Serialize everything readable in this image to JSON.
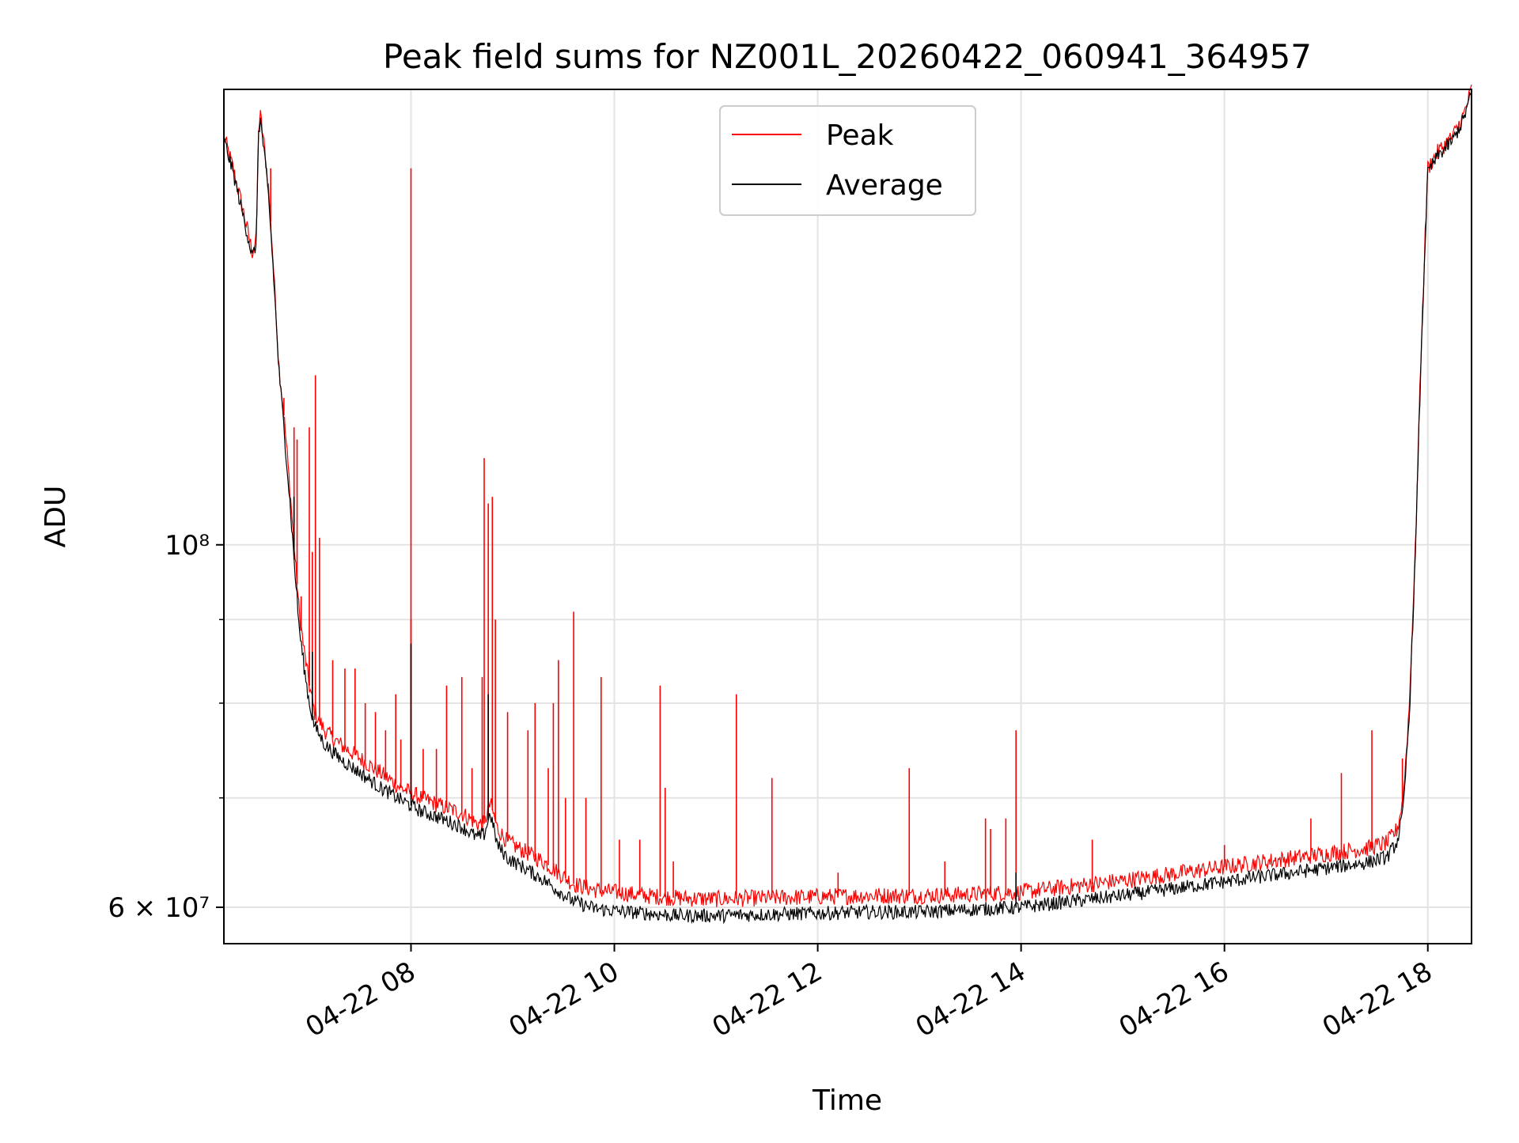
{
  "chart_data": {
    "type": "line",
    "title": "Peak field sums for NZ001L_20260422_060941_364957",
    "xlabel": "Time",
    "ylabel": "ADU",
    "x_unit": "hours since 2026-04-22 00:00",
    "xlim": [
      6.16,
      18.43
    ],
    "ylim": [
      57000000,
      190000000
    ],
    "yscale": "log",
    "grid": true,
    "legend_position": "top-center",
    "x_ticks": [
      {
        "value": 8,
        "label": "04-22 08"
      },
      {
        "value": 10,
        "label": "04-22 10"
      },
      {
        "value": 12,
        "label": "04-22 12"
      },
      {
        "value": 14,
        "label": "04-22 14"
      },
      {
        "value": 16,
        "label": "04-22 16"
      },
      {
        "value": 18,
        "label": "04-22 18"
      }
    ],
    "y_major_ticks": [
      {
        "value": 60000000,
        "label": "6 × 10⁷"
      },
      {
        "value": 100000000,
        "label": "10⁸"
      }
    ],
    "y_minor_ticks": [
      70000000,
      80000000,
      90000000
    ],
    "series": [
      {
        "name": "Peak",
        "color": "#ff0000",
        "baseline": [
          [
            6.16,
            178000000
          ],
          [
            6.25,
            170000000
          ],
          [
            6.35,
            160000000
          ],
          [
            6.44,
            151000000
          ],
          [
            6.48,
            154000000
          ],
          [
            6.5,
            180000000
          ],
          [
            6.52,
            183000000
          ],
          [
            6.55,
            177000000
          ],
          [
            6.6,
            165000000
          ],
          [
            6.7,
            129000000
          ],
          [
            6.75,
            120000000
          ],
          [
            6.8,
            110000000
          ],
          [
            6.85,
            100000000
          ],
          [
            6.9,
            91000000
          ],
          [
            6.95,
            86000000
          ],
          [
            7.0,
            82000000
          ],
          [
            7.05,
            79000000
          ],
          [
            7.15,
            77000000
          ],
          [
            7.3,
            75500000
          ],
          [
            7.5,
            74000000
          ],
          [
            7.7,
            72500000
          ],
          [
            7.9,
            71000000
          ],
          [
            8.1,
            70000000
          ],
          [
            8.3,
            69200000
          ],
          [
            8.5,
            68500000
          ],
          [
            8.65,
            67500000
          ],
          [
            8.72,
            67500000
          ],
          [
            8.78,
            69500000
          ],
          [
            8.85,
            67000000
          ],
          [
            8.95,
            65800000
          ],
          [
            9.1,
            65000000
          ],
          [
            9.3,
            64000000
          ],
          [
            9.45,
            63000000
          ],
          [
            9.6,
            62000000
          ],
          [
            9.8,
            61500000
          ],
          [
            10.0,
            61300000
          ],
          [
            10.3,
            61000000
          ],
          [
            10.6,
            60800000
          ],
          [
            11.0,
            60700000
          ],
          [
            11.5,
            60800000
          ],
          [
            12.0,
            60900000
          ],
          [
            12.5,
            61000000
          ],
          [
            13.0,
            61000000
          ],
          [
            13.5,
            61100000
          ],
          [
            14.0,
            61300000
          ],
          [
            14.5,
            61800000
          ],
          [
            15.0,
            62300000
          ],
          [
            15.5,
            62900000
          ],
          [
            16.0,
            63500000
          ],
          [
            16.5,
            64100000
          ],
          [
            17.0,
            64700000
          ],
          [
            17.4,
            65200000
          ],
          [
            17.6,
            65700000
          ],
          [
            17.7,
            67000000
          ],
          [
            17.76,
            70000000
          ],
          [
            17.82,
            80000000
          ],
          [
            17.88,
            100000000
          ],
          [
            17.95,
            140000000
          ],
          [
            18.0,
            170000000
          ],
          [
            18.1,
            174000000
          ],
          [
            18.25,
            178000000
          ],
          [
            18.35,
            183000000
          ],
          [
            18.43,
            190000000
          ]
        ],
        "spikes": [
          [
            6.62,
            170000000
          ],
          [
            6.75,
            123000000
          ],
          [
            6.85,
            118000000
          ],
          [
            6.88,
            116000000
          ],
          [
            6.92,
            93000000
          ],
          [
            7.0,
            118000000
          ],
          [
            7.0,
            86000000
          ],
          [
            7.03,
            99000000
          ],
          [
            7.06,
            127000000
          ],
          [
            7.1,
            101000000
          ],
          [
            7.23,
            85000000
          ],
          [
            7.35,
            84000000
          ],
          [
            7.45,
            84000000
          ],
          [
            7.55,
            80000000
          ],
          [
            7.65,
            79000000
          ],
          [
            7.75,
            77000000
          ],
          [
            7.85,
            81000000
          ],
          [
            7.9,
            76000000
          ],
          [
            8.0,
            170000000
          ],
          [
            8.0,
            90000000
          ],
          [
            8.12,
            75000000
          ],
          [
            8.25,
            75000000
          ],
          [
            8.35,
            82000000
          ],
          [
            8.5,
            83000000
          ],
          [
            8.6,
            73000000
          ],
          [
            8.7,
            83000000
          ],
          [
            8.72,
            113000000
          ],
          [
            8.76,
            106000000
          ],
          [
            8.8,
            107000000
          ],
          [
            8.83,
            90000000
          ],
          [
            8.95,
            79000000
          ],
          [
            9.15,
            77000000
          ],
          [
            9.22,
            80000000
          ],
          [
            9.35,
            73000000
          ],
          [
            9.4,
            80000000
          ],
          [
            9.45,
            85000000
          ],
          [
            9.52,
            70000000
          ],
          [
            9.6,
            91000000
          ],
          [
            9.72,
            70000000
          ],
          [
            9.87,
            83000000
          ],
          [
            10.05,
            66000000
          ],
          [
            10.25,
            66000000
          ],
          [
            10.45,
            82000000
          ],
          [
            10.5,
            71000000
          ],
          [
            10.58,
            64000000
          ],
          [
            11.2,
            81000000
          ],
          [
            11.55,
            72000000
          ],
          [
            12.2,
            63000000
          ],
          [
            12.9,
            73000000
          ],
          [
            13.25,
            64000000
          ],
          [
            13.65,
            68000000
          ],
          [
            13.7,
            67000000
          ],
          [
            13.85,
            68000000
          ],
          [
            13.95,
            77000000
          ],
          [
            14.7,
            66000000
          ],
          [
            16.0,
            65500000
          ],
          [
            16.85,
            68000000
          ],
          [
            17.15,
            72500000
          ],
          [
            17.45,
            77000000
          ],
          [
            17.75,
            74000000
          ]
        ]
      },
      {
        "name": "Average",
        "color": "#000000",
        "baseline": [
          [
            6.16,
            177000000
          ],
          [
            6.25,
            169000000
          ],
          [
            6.35,
            159000000
          ],
          [
            6.44,
            150000000
          ],
          [
            6.48,
            153000000
          ],
          [
            6.5,
            179000000
          ],
          [
            6.52,
            182000000
          ],
          [
            6.55,
            175000000
          ],
          [
            6.6,
            163000000
          ],
          [
            6.7,
            128000000
          ],
          [
            6.75,
            118000000
          ],
          [
            6.8,
            108000000
          ],
          [
            6.85,
            98000000
          ],
          [
            6.9,
            89000000
          ],
          [
            6.95,
            84000000
          ],
          [
            7.0,
            80000000
          ],
          [
            7.05,
            77500000
          ],
          [
            7.15,
            75500000
          ],
          [
            7.3,
            74000000
          ],
          [
            7.5,
            72500000
          ],
          [
            7.7,
            71000000
          ],
          [
            7.9,
            69800000
          ],
          [
            8.1,
            68700000
          ],
          [
            8.3,
            68000000
          ],
          [
            8.5,
            67200000
          ],
          [
            8.65,
            66200000
          ],
          [
            8.72,
            66500000
          ],
          [
            8.78,
            68500000
          ],
          [
            8.85,
            65500000
          ],
          [
            8.95,
            64300000
          ],
          [
            9.1,
            63500000
          ],
          [
            9.3,
            62400000
          ],
          [
            9.45,
            61400000
          ],
          [
            9.6,
            60500000
          ],
          [
            9.8,
            59900000
          ],
          [
            10.0,
            59700000
          ],
          [
            10.3,
            59500000
          ],
          [
            10.6,
            59300000
          ],
          [
            11.0,
            59300000
          ],
          [
            11.5,
            59400000
          ],
          [
            12.0,
            59500000
          ],
          [
            12.5,
            59600000
          ],
          [
            13.0,
            59600000
          ],
          [
            13.5,
            59800000
          ],
          [
            14.0,
            60000000
          ],
          [
            14.5,
            60500000
          ],
          [
            15.0,
            61000000
          ],
          [
            15.5,
            61600000
          ],
          [
            16.0,
            62200000
          ],
          [
            16.5,
            62800000
          ],
          [
            17.0,
            63400000
          ],
          [
            17.4,
            63900000
          ],
          [
            17.6,
            64400000
          ],
          [
            17.7,
            65800000
          ],
          [
            17.76,
            68800000
          ],
          [
            17.82,
            79000000
          ],
          [
            17.88,
            99000000
          ],
          [
            17.95,
            139000000
          ],
          [
            18.0,
            169000000
          ],
          [
            18.1,
            173000000
          ],
          [
            18.25,
            177000000
          ],
          [
            18.35,
            182000000
          ],
          [
            18.43,
            189000000
          ]
        ],
        "spikes": [
          [
            6.85,
            107000000
          ],
          [
            7.03,
            86000000
          ],
          [
            8.0,
            87000000
          ],
          [
            8.76,
            81000000
          ],
          [
            13.95,
            63000000
          ]
        ]
      }
    ]
  }
}
